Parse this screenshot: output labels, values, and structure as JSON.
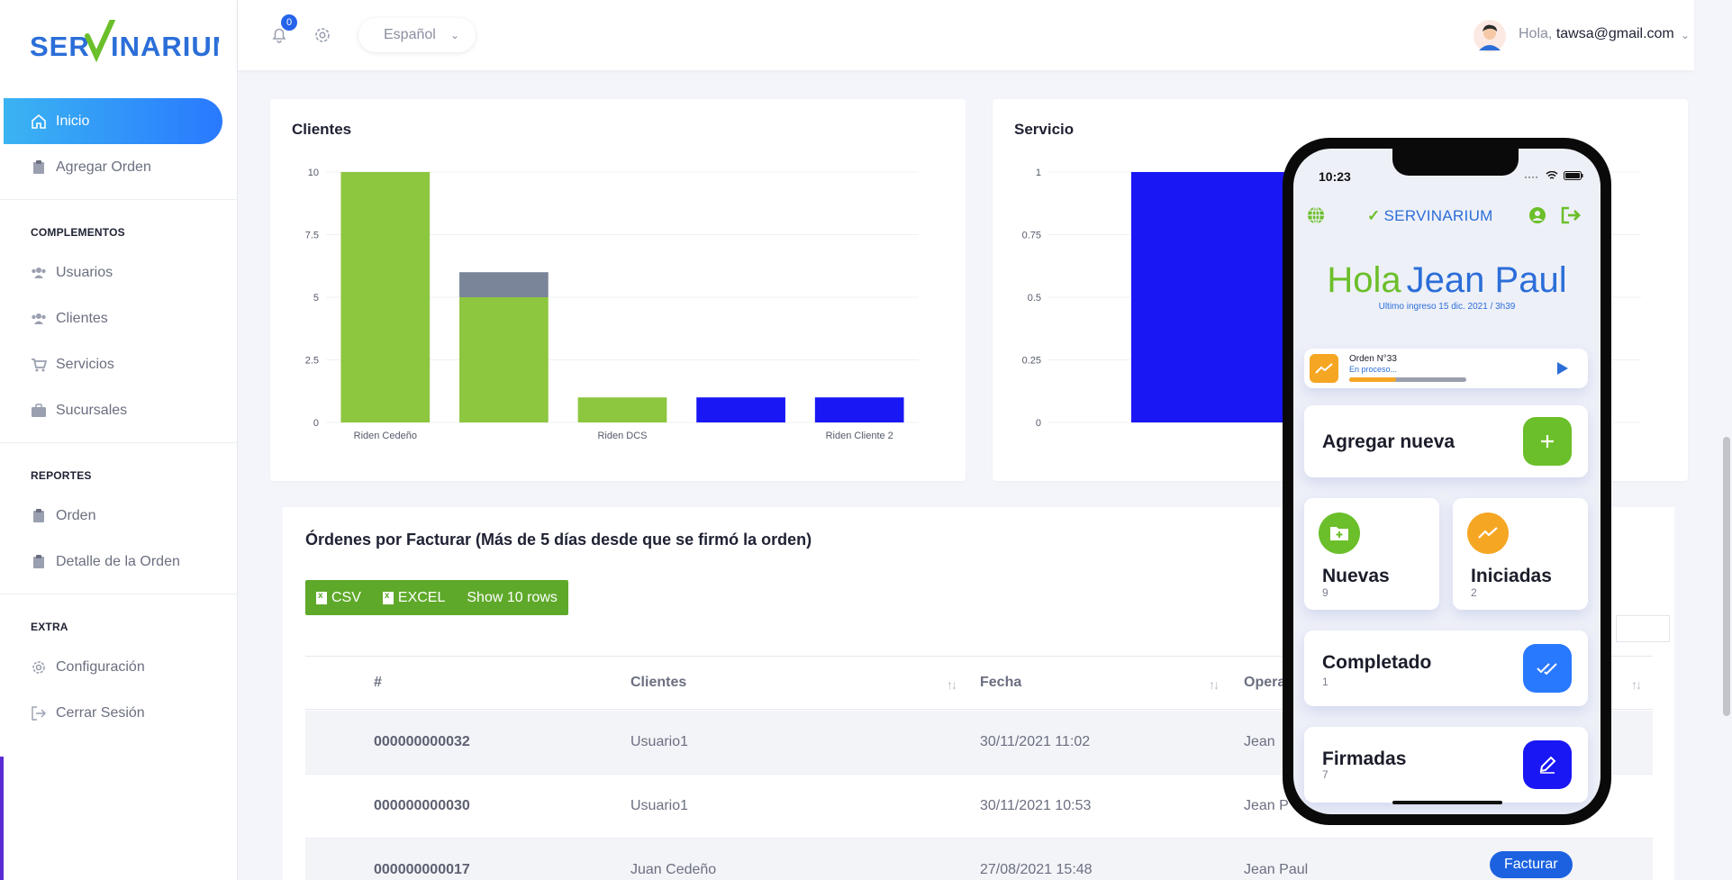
{
  "app": {
    "brand": "SERVINARIUM",
    "accent": "#2979ff",
    "green": "#5fa92a"
  },
  "sidebar": {
    "main_items": [
      {
        "label": "Inicio",
        "icon": "home-icon",
        "active": true
      },
      {
        "label": "Agregar Orden",
        "icon": "clipboard-icon",
        "active": false
      }
    ],
    "sections": [
      {
        "title": "COMPLEMENTOS",
        "items": [
          {
            "label": "Usuarios",
            "icon": "users-icon"
          },
          {
            "label": "Clientes",
            "icon": "users-icon"
          },
          {
            "label": "Servicios",
            "icon": "cart-icon"
          },
          {
            "label": "Sucursales",
            "icon": "briefcase-icon"
          }
        ]
      },
      {
        "title": "REPORTES",
        "items": [
          {
            "label": "Orden",
            "icon": "clipboard-icon"
          },
          {
            "label": "Detalle de la Orden",
            "icon": "clipboard-icon"
          }
        ]
      },
      {
        "title": "EXTRA",
        "items": [
          {
            "label": "Configuración",
            "icon": "gear-icon"
          },
          {
            "label": "Cerrar Sesión",
            "icon": "logout-icon"
          }
        ]
      }
    ]
  },
  "topbar": {
    "notifications": "0",
    "language": "Español",
    "greeting_prefix": "Hola,",
    "user_email": "tawsa@gmail.com"
  },
  "chart_data": [
    {
      "type": "bar",
      "title": "Clientes",
      "categories": [
        "Riden Cedeño",
        "",
        "Riden DCS",
        "",
        "Riden Cliente 2"
      ],
      "series": [
        {
          "values": [
            10,
            5,
            1,
            0,
            0
          ],
          "color": "#8dc63f"
        },
        {
          "values": [
            0,
            1,
            0,
            0,
            0
          ],
          "color": "#7a8599"
        },
        {
          "values": [
            0,
            0,
            0,
            1,
            1
          ],
          "color": "#1a17f5"
        }
      ],
      "stacked": true,
      "ylim": [
        0,
        10
      ],
      "yticks": [
        "10",
        "7.5",
        "5",
        "2.5",
        "0"
      ],
      "grid": true
    },
    {
      "type": "bar",
      "title": "Servicio",
      "categories": [
        ""
      ],
      "series": [
        {
          "values": [
            1
          ],
          "color": "#1a17f5"
        }
      ],
      "ylim": [
        0,
        1
      ],
      "yticks": [
        "1",
        "0.75",
        "0.5",
        "0.25",
        "0"
      ],
      "grid": true
    }
  ],
  "orders": {
    "title": "Órdenes por Facturar (Más de 5 días desde que se firmó la orden)",
    "buttons": [
      "CSV",
      "EXCEL",
      "Show 10 rows"
    ],
    "columns": [
      "#",
      "Clientes",
      "Fecha",
      "Opera"
    ],
    "rows": [
      {
        "id": "000000000032",
        "client": "Usuario1",
        "date": "30/11/2021 11:02",
        "operator": "Jean"
      },
      {
        "id": "000000000030",
        "client": "Usuario1",
        "date": "30/11/2021 10:53",
        "operator": "Jean P"
      },
      {
        "id": "000000000017",
        "client": "Juan Cedeño",
        "date": "27/08/2021 15:48",
        "operator": "Jean Paul",
        "action": "Facturar"
      }
    ]
  },
  "phone": {
    "time": "10:23",
    "brand": "SERVINARIUM",
    "hello": "Hola",
    "name": "Jean Paul",
    "last_login": "Ultimo ingreso 15 dic. 2021 / 3h39",
    "current_order": {
      "label": "Orden N°33",
      "status": "En proceso...",
      "progress": 0.4
    },
    "add_new": "Agregar nueva",
    "tiles": [
      {
        "label": "Nuevas",
        "count": "9",
        "color": "#6bbf2a"
      },
      {
        "label": "Iniciadas",
        "count": "2",
        "color": "#f5a623"
      },
      {
        "label": "Completado",
        "count": "1",
        "color": "#2979ff"
      },
      {
        "label": "Firmadas",
        "count": "7",
        "color": "#1a17f5"
      }
    ]
  }
}
